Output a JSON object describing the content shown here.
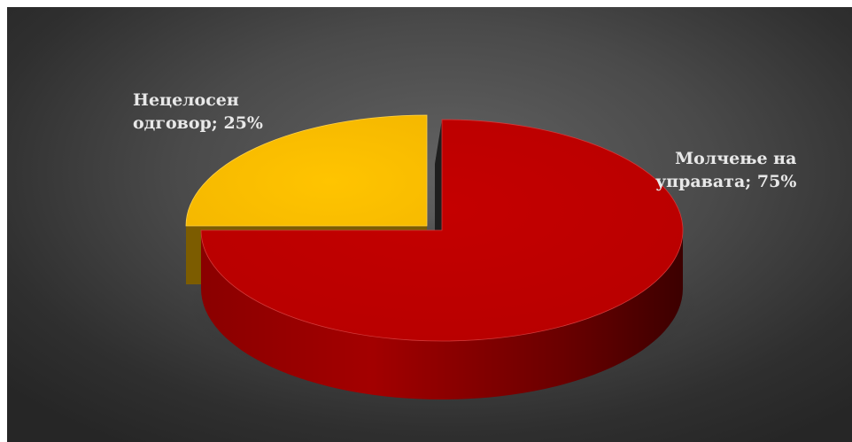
{
  "chart_data": {
    "type": "pie",
    "style": "3d-exploded",
    "categories": [
      "Молчење на управата",
      "Нецелосен одговор"
    ],
    "values": [
      75,
      25
    ],
    "labels": [
      [
        "Молчење на",
        "управата; 75%"
      ],
      [
        "Нецелосен",
        "одговор; 25%"
      ]
    ],
    "colors": [
      "#c00000",
      "#ffc000"
    ],
    "background": "#4a4a4a",
    "title": "",
    "legend": false
  }
}
